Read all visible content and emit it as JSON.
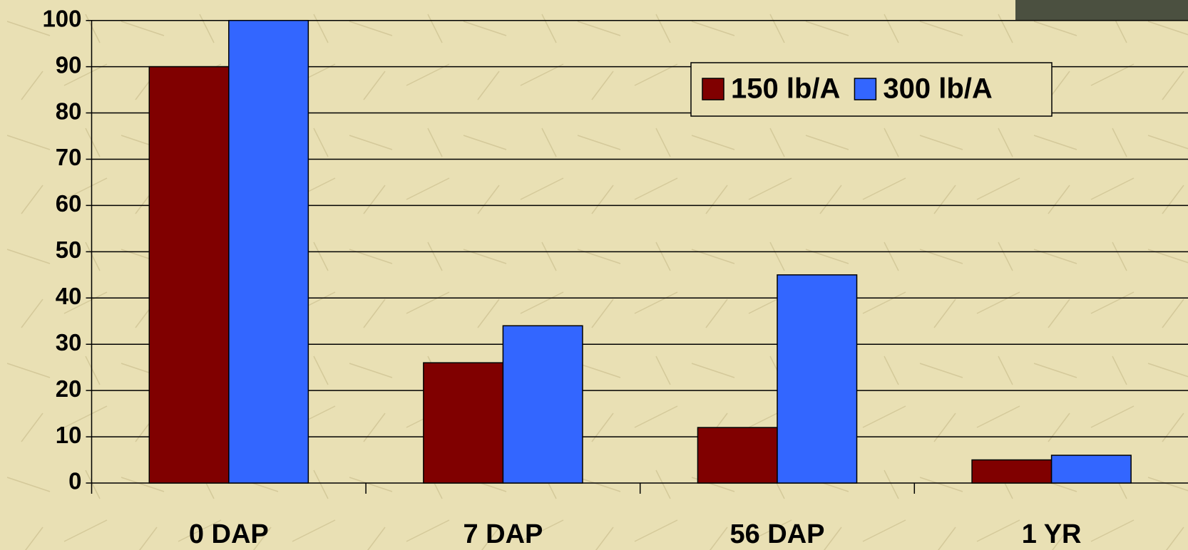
{
  "chart_data": {
    "type": "bar",
    "categories": [
      "0 DAP",
      "7 DAP",
      "56 DAP",
      "1 YR"
    ],
    "series": [
      {
        "name": "150 lb/A",
        "color": "#800000",
        "values": [
          90,
          26,
          12,
          5
        ]
      },
      {
        "name": "300 lb/A",
        "color": "#3366ff",
        "values": [
          100,
          34,
          45,
          6
        ]
      }
    ],
    "ylim": [
      0,
      100
    ],
    "yticks": [
      0,
      10,
      20,
      30,
      40,
      50,
      60,
      70,
      80,
      90,
      100
    ],
    "grid": true,
    "legend": "top-right"
  }
}
